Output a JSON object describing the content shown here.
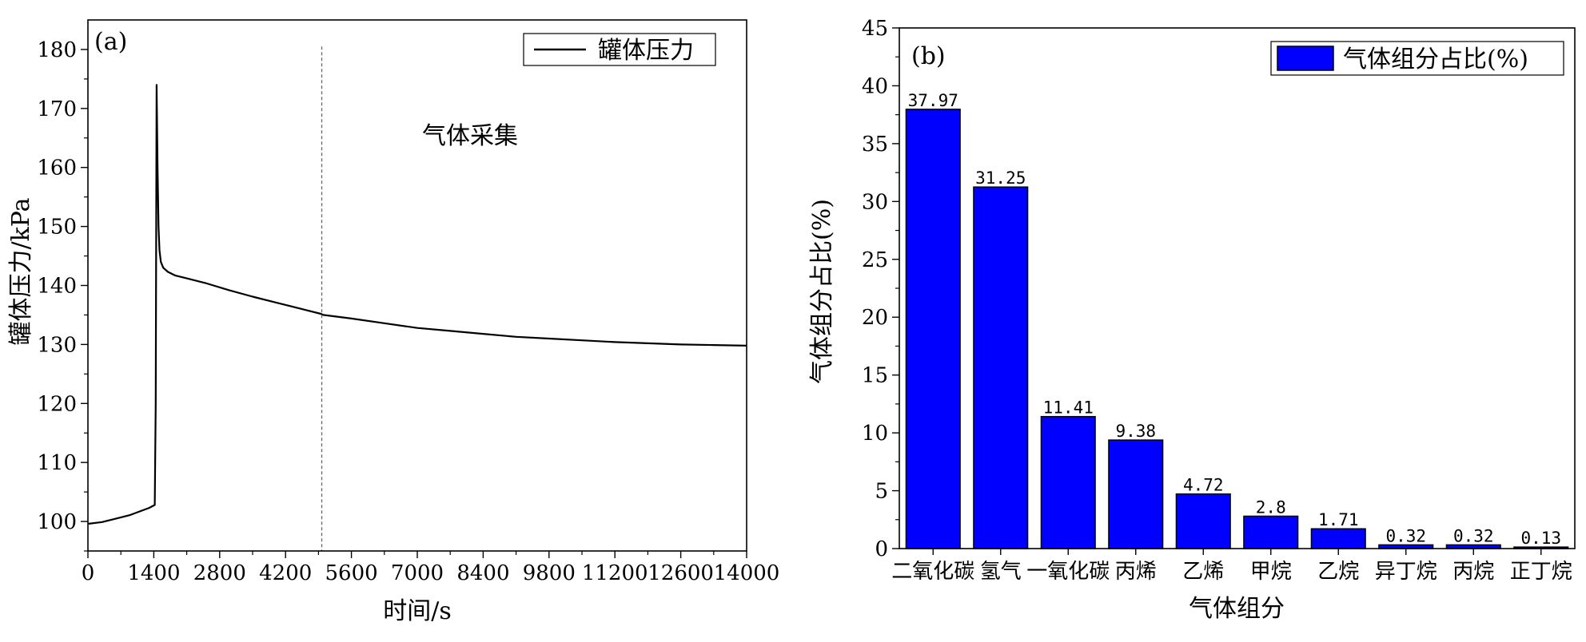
{
  "chart_data": [
    {
      "type": "line",
      "panel_label": "(a)",
      "xlabel": "时间/s",
      "ylabel": "罐体压力/kPa",
      "xlim": [
        0,
        14000
      ],
      "ylim": [
        95,
        185
      ],
      "xticks": [
        0,
        1400,
        2800,
        4200,
        5600,
        7000,
        8400,
        9800,
        11200,
        12600,
        14000
      ],
      "yticks": [
        100,
        110,
        120,
        130,
        140,
        150,
        160,
        170,
        180
      ],
      "grid": false,
      "legend_position": "top-right",
      "series": [
        {
          "name": "罐体压力",
          "color": "#000000",
          "x": [
            0,
            300,
            600,
            900,
            1100,
            1300,
            1420,
            1440,
            1460,
            1480,
            1500,
            1520,
            1550,
            1600,
            1700,
            1850,
            2100,
            2500,
            3000,
            3500,
            4000,
            4500,
            4950,
            5000,
            5600,
            6300,
            7000,
            7700,
            8400,
            9100,
            9800,
            10500,
            11200,
            11900,
            12600,
            13300,
            14000
          ],
          "y": [
            99.6,
            99.9,
            100.5,
            101.1,
            101.7,
            102.3,
            102.8,
            120.0,
            174.0,
            160.0,
            150.0,
            146.0,
            144.0,
            143.0,
            142.3,
            141.7,
            141.2,
            140.4,
            139.2,
            138.1,
            137.1,
            136.1,
            135.2,
            135.0,
            134.4,
            133.6,
            132.8,
            132.3,
            131.8,
            131.3,
            131.0,
            130.7,
            130.4,
            130.2,
            130.0,
            129.9,
            129.8
          ]
        }
      ],
      "vline": {
        "x": 4970,
        "style": "dashed",
        "color": "#666666"
      },
      "annotation": "气体采集"
    },
    {
      "type": "bar",
      "panel_label": "(b)",
      "xlabel": "气体组分",
      "ylabel": "气体组分占比(%)",
      "ylim": [
        0,
        45
      ],
      "yticks": [
        0,
        5,
        10,
        15,
        20,
        25,
        30,
        35,
        40,
        45
      ],
      "grid": false,
      "legend_position": "top-right",
      "categories": [
        "二氧化碳",
        "氢气",
        "一氧化碳",
        "丙烯",
        "乙烯",
        "甲烷",
        "乙烷",
        "异丁烷",
        "丙烷",
        "正丁烷"
      ],
      "series": [
        {
          "name": "气体组分占比(%)",
          "color": "#0000ff",
          "values": [
            37.97,
            31.25,
            11.41,
            9.38,
            4.72,
            2.8,
            1.71,
            0.32,
            0.32,
            0.13
          ],
          "labels": [
            "37.97",
            "31.25",
            "11.41",
            "9.38",
            "4.72",
            "2.8",
            "1.71",
            "0.32",
            "0.32",
            "0.13"
          ]
        }
      ]
    }
  ]
}
